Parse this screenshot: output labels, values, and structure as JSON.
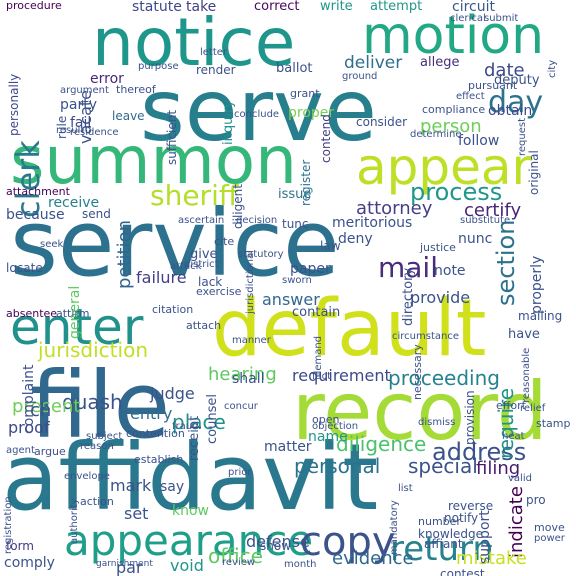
{
  "words": [
    {
      "text": "service",
      "color": "#2c728e"
    },
    {
      "text": "serve",
      "color": "#277f8e"
    },
    {
      "text": "affidavit",
      "color": "#2a788e"
    },
    {
      "text": "summon",
      "color": "#35b779"
    },
    {
      "text": "default",
      "color": "#d0e11c"
    },
    {
      "text": "file",
      "color": "#31688e"
    },
    {
      "text": "notice",
      "color": "#1f968b"
    },
    {
      "text": "record",
      "color": "#a5db36"
    },
    {
      "text": "motion",
      "color": "#22a884"
    },
    {
      "text": "appear",
      "color": "#bddf26"
    },
    {
      "text": "appearance",
      "color": "#1f9e89"
    },
    {
      "text": "enter",
      "color": "#21918c"
    },
    {
      "text": "copy",
      "color": "#3b528b"
    },
    {
      "text": "return",
      "color": "#26828e"
    },
    {
      "text": "sheriff",
      "color": "#b5de2b"
    },
    {
      "text": "clerk",
      "color": "#2a788e"
    },
    {
      "text": "day",
      "color": "#2c728e"
    },
    {
      "text": "process",
      "color": "#1f988b"
    },
    {
      "text": "jurisdiction",
      "color": "#c2df23"
    },
    {
      "text": "address",
      "color": "#3b528b"
    },
    {
      "text": "mail",
      "color": "#472d7b"
    },
    {
      "text": "section",
      "color": "#2c728e"
    },
    {
      "text": "attorney",
      "color": "#433e85"
    },
    {
      "text": "proceeding",
      "color": "#26828e"
    },
    {
      "text": "requirement",
      "color": "#3e4989"
    },
    {
      "text": "hearing",
      "color": "#5ec962"
    },
    {
      "text": "diligence",
      "color": "#4ac16d"
    },
    {
      "text": "motion",
      "color": "#22a884"
    },
    {
      "text": "quash",
      "color": "#3b528b"
    },
    {
      "text": "person",
      "color": "#6ece58"
    },
    {
      "text": "date",
      "color": "#3e4989"
    },
    {
      "text": "deliver",
      "color": "#2e6e8e"
    },
    {
      "text": "certify",
      "color": "#482576"
    },
    {
      "text": "answer",
      "color": "#31688e"
    },
    {
      "text": "petition",
      "color": "#32648e"
    },
    {
      "text": "failure",
      "color": "#433e85"
    },
    {
      "text": "entry",
      "color": "#2e6e8e"
    },
    {
      "text": "judge",
      "color": "#3b528b"
    },
    {
      "text": "place",
      "color": "#21918c"
    },
    {
      "text": "proof",
      "color": "#3e4989"
    },
    {
      "text": "present",
      "color": "#6ece58"
    },
    {
      "text": "personal",
      "color": "#2c728e"
    },
    {
      "text": "special",
      "color": "#3b528b"
    },
    {
      "text": "filing",
      "color": "#481b6d"
    },
    {
      "text": "require",
      "color": "#21918c"
    },
    {
      "text": "indicate",
      "color": "#440154"
    },
    {
      "text": "mistake",
      "color": "#c8e020"
    },
    {
      "text": "evidence",
      "color": "#31688e"
    },
    {
      "text": "defense",
      "color": "#3b528b"
    },
    {
      "text": "office",
      "color": "#5ec962"
    },
    {
      "text": "void",
      "color": "#1f988b"
    },
    {
      "text": "par",
      "color": "#3b528b"
    },
    {
      "text": "comply",
      "color": "#3b528b"
    },
    {
      "text": "form",
      "color": "#443983"
    },
    {
      "text": "vacate",
      "color": "#3b528b"
    },
    {
      "text": "personally",
      "color": "#3e4989"
    },
    {
      "text": "party",
      "color": "#3b528b"
    },
    {
      "text": "error",
      "color": "#482878"
    },
    {
      "text": "fail",
      "color": "#3e4989"
    },
    {
      "text": "leave",
      "color": "#31688e"
    },
    {
      "text": "receive",
      "color": "#27808e"
    },
    {
      "text": "send",
      "color": "#3b528b"
    },
    {
      "text": "because",
      "color": "#3b528b"
    },
    {
      "text": "statute",
      "color": "#3e4989"
    },
    {
      "text": "take",
      "color": "#433e85"
    },
    {
      "text": "correct",
      "color": "#46085c"
    },
    {
      "text": "write",
      "color": "#1f968b"
    },
    {
      "text": "attempt",
      "color": "#1f988b"
    },
    {
      "text": "circuit",
      "color": "#38588c"
    },
    {
      "text": "procedure",
      "color": "#440154"
    },
    {
      "text": "render",
      "color": "#3b528b"
    },
    {
      "text": "ballot",
      "color": "#3b528b"
    },
    {
      "text": "allege",
      "color": "#472d7b"
    },
    {
      "text": "obtain",
      "color": "#3e4989"
    },
    {
      "text": "deputy",
      "color": "#3b528b"
    },
    {
      "text": "follow",
      "color": "#3b528b"
    },
    {
      "text": "inquiry",
      "color": "#21918c"
    },
    {
      "text": "proper",
      "color": "#7ad151"
    },
    {
      "text": "consider",
      "color": "#3b528b"
    },
    {
      "text": "contend",
      "color": "#433e85"
    },
    {
      "text": "register",
      "color": "#2c728e"
    },
    {
      "text": "issue",
      "color": "#2c728e"
    },
    {
      "text": "diligent",
      "color": "#3b528b"
    },
    {
      "text": "meritorious",
      "color": "#3b528b"
    },
    {
      "text": "deny",
      "color": "#3b528b"
    },
    {
      "text": "law",
      "color": "#3b528b"
    },
    {
      "text": "cite",
      "color": "#3b528b"
    },
    {
      "text": "give",
      "color": "#3b528b"
    },
    {
      "text": "paper",
      "color": "#3b528b"
    },
    {
      "text": "lack",
      "color": "#3b528b"
    },
    {
      "text": "contain",
      "color": "#3b528b"
    },
    {
      "text": "directory",
      "color": "#3b528b"
    },
    {
      "text": "provide",
      "color": "#3b528b"
    },
    {
      "text": "note",
      "color": "#3b528b"
    },
    {
      "text": "nunc",
      "color": "#3b528b"
    },
    {
      "text": "properly",
      "color": "#3b528b"
    },
    {
      "text": "general",
      "color": "#5ec962"
    },
    {
      "text": "complaint",
      "color": "#3b528b"
    },
    {
      "text": "shall",
      "color": "#3b528b"
    },
    {
      "text": "counsel",
      "color": "#3b528b"
    },
    {
      "text": "receipt",
      "color": "#3b528b"
    },
    {
      "text": "name",
      "color": "#1f988b"
    },
    {
      "text": "matter",
      "color": "#3b528b"
    },
    {
      "text": "mark",
      "color": "#3b528b"
    },
    {
      "text": "say",
      "color": "#3b528b"
    },
    {
      "text": "set",
      "color": "#3b528b"
    },
    {
      "text": "know",
      "color": "#5ec962"
    },
    {
      "text": "show",
      "color": "#3b528b"
    },
    {
      "text": "support",
      "color": "#3b528b"
    },
    {
      "text": "ch",
      "color": "#3b528b"
    },
    {
      "text": "rule",
      "color": "#3b528b"
    },
    {
      "text": "sufficient",
      "color": "#3b528b"
    },
    {
      "text": "tunc",
      "color": "#3b528b"
    },
    {
      "text": "attachment",
      "color": "#440154"
    },
    {
      "text": "thereof",
      "color": "#3b528b"
    },
    {
      "text": "grant",
      "color": "#3b528b"
    },
    {
      "text": "locate",
      "color": "#3b528b"
    },
    {
      "text": "absentee",
      "color": "#440154"
    },
    {
      "text": "mailing",
      "color": "#3b528b"
    },
    {
      "text": "establish",
      "color": "#3b528b"
    },
    {
      "text": "contention",
      "color": "#3b528b"
    },
    {
      "text": "argue",
      "color": "#3b528b"
    },
    {
      "text": "subject",
      "color": "#3b528b"
    },
    {
      "text": "envelope",
      "color": "#3b528b"
    },
    {
      "text": "concur",
      "color": "#3b528b"
    },
    {
      "text": "action",
      "color": "#3b528b"
    },
    {
      "text": "authority",
      "color": "#3b528b"
    },
    {
      "text": "month",
      "color": "#3b528b"
    },
    {
      "text": "contest",
      "color": "#3b528b"
    },
    {
      "text": "knowledge",
      "color": "#3b528b"
    },
    {
      "text": "affiant",
      "color": "#3b528b"
    },
    {
      "text": "number",
      "color": "#3b528b"
    },
    {
      "text": "reverse",
      "color": "#3b528b"
    },
    {
      "text": "notify",
      "color": "#3b528b"
    },
    {
      "text": "move",
      "color": "#3b528b"
    },
    {
      "text": "pro",
      "color": "#3b528b"
    },
    {
      "text": "power",
      "color": "#3b528b"
    },
    {
      "text": "effort",
      "color": "#3b528b"
    },
    {
      "text": "stamp",
      "color": "#3b528b"
    },
    {
      "text": "dismiss",
      "color": "#3b528b"
    },
    {
      "text": "provision",
      "color": "#3b528b"
    },
    {
      "text": "open",
      "color": "#3b528b"
    },
    {
      "text": "have",
      "color": "#3b528b"
    },
    {
      "text": "justice",
      "color": "#3b528b"
    },
    {
      "text": "exercise",
      "color": "#3b528b"
    },
    {
      "text": "decision",
      "color": "#3b528b"
    },
    {
      "text": "ascertain",
      "color": "#3b528b"
    },
    {
      "text": "citation",
      "color": "#3b528b"
    },
    {
      "text": "attach",
      "color": "#3b528b"
    },
    {
      "text": "attirm",
      "color": "#3b528b"
    },
    {
      "text": "seek",
      "color": "#3b528b"
    },
    {
      "text": "compliance",
      "color": "#3b528b"
    },
    {
      "text": "pursuant",
      "color": "#3b528b"
    },
    {
      "text": "ground",
      "color": "#3b528b"
    },
    {
      "text": "effect",
      "color": "#3b528b"
    },
    {
      "text": "argument",
      "color": "#3b528b"
    },
    {
      "text": "purpose",
      "color": "#3b528b"
    },
    {
      "text": "letter",
      "color": "#3b528b"
    },
    {
      "text": "result",
      "color": "#3b528b"
    },
    {
      "text": "residence",
      "color": "#3b528b"
    },
    {
      "text": "conclude",
      "color": "#3b528b"
    },
    {
      "text": "determine",
      "color": "#3b528b"
    },
    {
      "text": "original",
      "color": "#3b528b"
    },
    {
      "text": "request",
      "color": "#3b528b"
    },
    {
      "text": "submit",
      "color": "#3b528b"
    },
    {
      "text": "clerical",
      "color": "#3b528b"
    },
    {
      "text": "city",
      "color": "#3b528b"
    },
    {
      "text": "substitute",
      "color": "#3b528b"
    },
    {
      "text": "circumstance",
      "color": "#3b528b"
    },
    {
      "text": "necessary",
      "color": "#3b528b"
    },
    {
      "text": "reasonable",
      "color": "#3b528b"
    },
    {
      "text": "valid",
      "color": "#3b528b"
    },
    {
      "text": "heat",
      "color": "#3b528b"
    },
    {
      "text": "mandatory",
      "color": "#3b528b"
    },
    {
      "text": "review",
      "color": "#3b528b"
    },
    {
      "text": "garnishment",
      "color": "#3b528b"
    },
    {
      "text": "agent",
      "color": "#3b528b"
    },
    {
      "text": "registration",
      "color": "#3b528b"
    },
    {
      "text": "reason",
      "color": "#3b528b"
    },
    {
      "text": "objection",
      "color": "#3b528b"
    },
    {
      "text": "prior",
      "color": "#3b528b"
    },
    {
      "text": "list",
      "color": "#3b528b"
    },
    {
      "text": "manner",
      "color": "#3b528b"
    },
    {
      "text": "demand",
      "color": "#3b528b"
    },
    {
      "text": "attack",
      "color": "#3b528b"
    },
    {
      "text": "sworn",
      "color": "#3b528b"
    },
    {
      "text": "statutory",
      "color": "#3b528b"
    },
    {
      "text": "fraud",
      "color": "#3b528b"
    },
    {
      "text": "relief",
      "color": "#3b528b"
    },
    {
      "text": "jurisdictional",
      "color": "#3b528b"
    },
    {
      "text": "district",
      "color": "#3b528b"
    },
    {
      "text": "fact",
      "color": "#3b528b"
    }
  ]
}
